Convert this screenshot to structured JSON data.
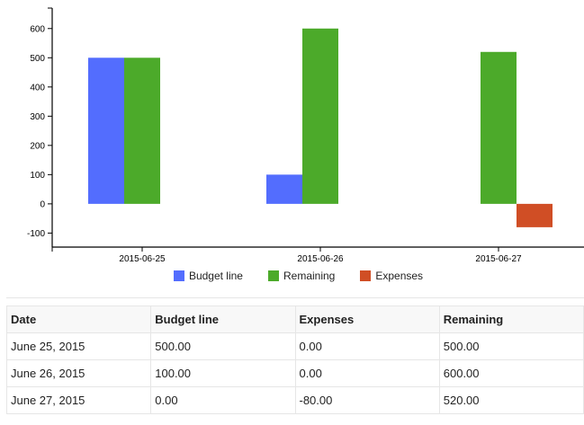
{
  "chart_data": {
    "type": "bar",
    "categories": [
      "2015-06-25",
      "2015-06-26",
      "2015-06-27"
    ],
    "series": [
      {
        "name": "Budget line",
        "color": "#536dfe",
        "values": [
          500,
          100,
          0
        ]
      },
      {
        "name": "Remaining",
        "color": "#4caa2a",
        "values": [
          500,
          600,
          520
        ]
      },
      {
        "name": "Expenses",
        "color": "#d04e25",
        "values": [
          0,
          0,
          -80
        ]
      }
    ],
    "yticks": [
      -100,
      0,
      100,
      200,
      300,
      400,
      500,
      600
    ],
    "ylim": [
      -148,
      670
    ],
    "legend": "bottom-center",
    "grid": false
  },
  "table": {
    "headers": [
      "Date",
      "Budget line",
      "Expenses",
      "Remaining"
    ],
    "rows": [
      [
        "June 25, 2015",
        "500.00",
        "0.00",
        "500.00"
      ],
      [
        "June 26, 2015",
        "100.00",
        "0.00",
        "600.00"
      ],
      [
        "June 27, 2015",
        "0.00",
        "-80.00",
        "520.00"
      ]
    ]
  }
}
